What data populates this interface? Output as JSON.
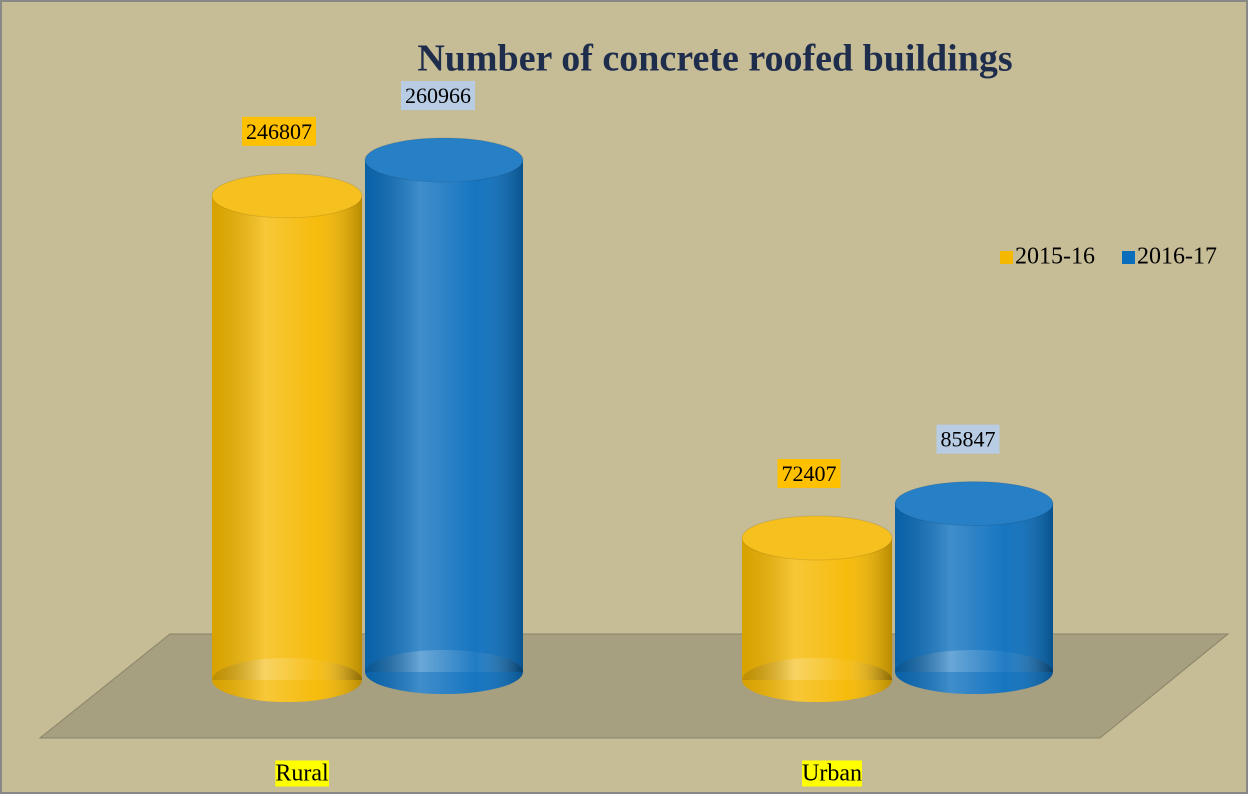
{
  "chart_data": {
    "type": "bar",
    "title": "Number of concrete roofed buildings",
    "categories": [
      "Rural",
      "Urban"
    ],
    "series": [
      {
        "name": "2015-16",
        "color": "#f5b800",
        "values": [
          246807,
          72407
        ]
      },
      {
        "name": "2016-17",
        "color": "#0a6ebd",
        "values": [
          260966,
          85847
        ]
      }
    ],
    "legend": "right"
  }
}
